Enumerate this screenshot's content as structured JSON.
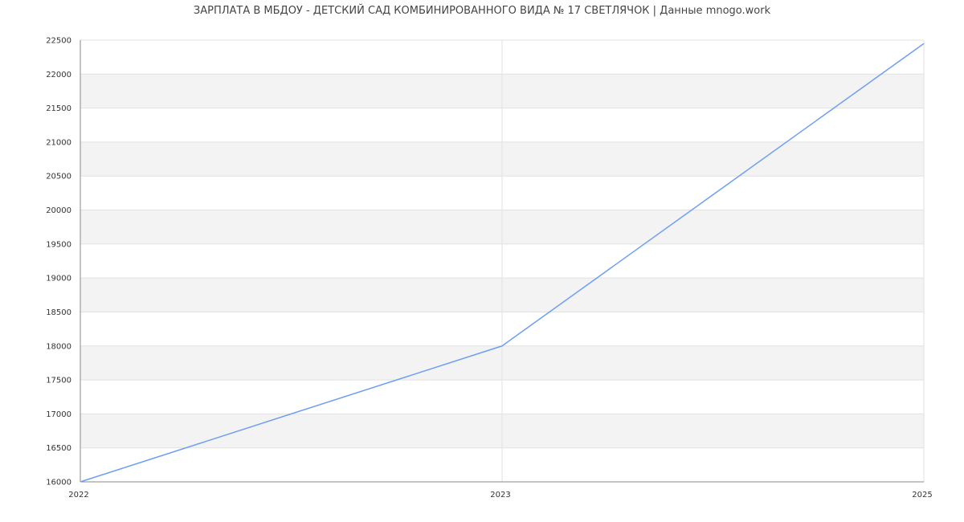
{
  "chart_data": {
    "type": "line",
    "title": "ЗАРПЛАТА В МБДОУ -  ДЕТСКИЙ САД КОМБИНИРОВАННОГО ВИДА № 17 СВЕТЛЯЧОК | Данные mnogo.work",
    "categories": [
      "2022",
      "2023",
      "2025"
    ],
    "series": [
      {
        "values": [
          16000,
          18000,
          22450
        ]
      }
    ],
    "ylim": [
      16000,
      22500
    ],
    "yticks": [
      16000,
      16500,
      17000,
      17500,
      18000,
      18500,
      19000,
      19500,
      20000,
      20500,
      21000,
      21500,
      22000,
      22500
    ],
    "grid": true,
    "banded_background": true,
    "legend": "none",
    "xlabel": "",
    "ylabel": "",
    "colors": {
      "line": "#6f9ef5",
      "band": "#f3f3f3",
      "grid": "#e2e2e2",
      "axis": "#888888"
    }
  }
}
